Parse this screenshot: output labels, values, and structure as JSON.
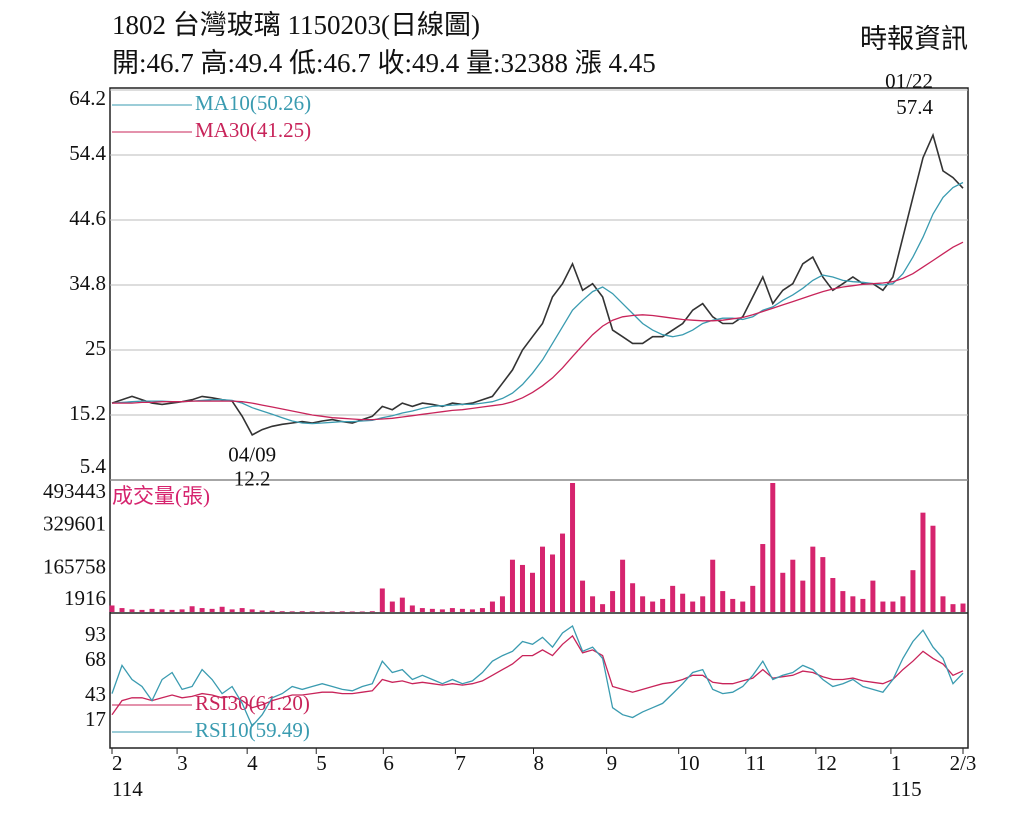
{
  "header": {
    "title": "1802  台灣玻璃 1150203(日線圖)",
    "source": "時報資訊",
    "summary": "開:46.7 高:49.4 低:46.7 收:49.4 量:32388 漲 4.45"
  },
  "chart_data": [
    {
      "type": "line",
      "panel": "price",
      "x": [
        0,
        1,
        2,
        3,
        4,
        5,
        6,
        7,
        8,
        9,
        10,
        11,
        12,
        13,
        14,
        15,
        16,
        17,
        18,
        19,
        20,
        21,
        22,
        23,
        24,
        25,
        26,
        27,
        28,
        29,
        30,
        31,
        32,
        33,
        34,
        35,
        36,
        37,
        38,
        39,
        40,
        41,
        42,
        43,
        44,
        45,
        46,
        47,
        48,
        49,
        50,
        51,
        52,
        53,
        54,
        55,
        56,
        57,
        58,
        59,
        60,
        61,
        62,
        63,
        64,
        65,
        66,
        67,
        68,
        69,
        70,
        71,
        72,
        73,
        74,
        75,
        76,
        77,
        78,
        79,
        80,
        81,
        82,
        83,
        84,
        85
      ],
      "xlim": [
        0,
        85
      ],
      "ylim": [
        5.4,
        64.2
      ],
      "yticks": [
        5.4,
        15.2,
        25.0,
        34.8,
        44.6,
        54.4,
        64.2
      ],
      "grid": true,
      "series": [
        {
          "name": null,
          "color": "#333333",
          "values": [
            17,
            17.5,
            18,
            17.5,
            17,
            16.8,
            17,
            17.2,
            17.5,
            18,
            17.8,
            17.5,
            17.3,
            15,
            12.2,
            13,
            13.5,
            13.8,
            14,
            14.2,
            14,
            14.3,
            14.5,
            14.2,
            14,
            14.5,
            15,
            16.5,
            16,
            17,
            16.5,
            17,
            16.8,
            16.5,
            17,
            16.8,
            17,
            17.5,
            18,
            20,
            22,
            25,
            27,
            29,
            33,
            35,
            38,
            34,
            35,
            33,
            28,
            27,
            26,
            26,
            27,
            27,
            28,
            29,
            31,
            32,
            30,
            29,
            29,
            30,
            33,
            36,
            32,
            34,
            35,
            38,
            39,
            36,
            34,
            35,
            36,
            35,
            35,
            34,
            36,
            42,
            48,
            54,
            57.4,
            52,
            51,
            49.4
          ]
        },
        {
          "name": "MA10(50.26)",
          "color": "#3a9bb0",
          "values": [
            17,
            17.1,
            17.2,
            17.3,
            17.3,
            17.3,
            17.2,
            17.2,
            17.3,
            17.4,
            17.5,
            17.5,
            17.4,
            17,
            16.3,
            15.8,
            15.3,
            14.8,
            14.3,
            14,
            13.9,
            14,
            14.1,
            14.2,
            14.2,
            14.3,
            14.4,
            14.8,
            15.1,
            15.5,
            15.8,
            16.2,
            16.5,
            16.6,
            16.7,
            16.8,
            16.8,
            17,
            17.2,
            17.7,
            18.5,
            19.8,
            21.5,
            23.5,
            26,
            28.5,
            31,
            32.5,
            33.8,
            34.5,
            33.5,
            32,
            30.5,
            29,
            28,
            27.3,
            27,
            27.3,
            28,
            29,
            29.5,
            29.8,
            29.8,
            29.6,
            30,
            31,
            31.5,
            32.5,
            33.3,
            34.3,
            35.5,
            36.3,
            36,
            35.5,
            35.3,
            35.2,
            35,
            34.8,
            35,
            36.5,
            39,
            42,
            45.5,
            48,
            49.5,
            50.26
          ]
        },
        {
          "name": "MA30(41.25)",
          "color": "#c8245a",
          "values": [
            17,
            17,
            17,
            17.1,
            17.1,
            17.2,
            17.2,
            17.2,
            17.3,
            17.3,
            17.3,
            17.3,
            17.3,
            17.2,
            17,
            16.7,
            16.4,
            16.1,
            15.8,
            15.5,
            15.2,
            15,
            14.8,
            14.7,
            14.6,
            14.5,
            14.5,
            14.6,
            14.7,
            14.9,
            15.1,
            15.3,
            15.5,
            15.7,
            15.9,
            16,
            16.2,
            16.4,
            16.6,
            16.8,
            17.2,
            17.8,
            18.6,
            19.6,
            20.8,
            22.3,
            24,
            25.7,
            27.3,
            28.6,
            29.5,
            30,
            30.2,
            30.3,
            30.2,
            30,
            29.8,
            29.6,
            29.5,
            29.4,
            29.4,
            29.5,
            29.7,
            29.9,
            30.3,
            30.8,
            31.3,
            31.8,
            32.3,
            32.8,
            33.3,
            33.8,
            34.2,
            34.5,
            34.7,
            34.9,
            35,
            35.1,
            35.3,
            35.8,
            36.5,
            37.5,
            38.5,
            39.5,
            40.5,
            41.25
          ]
        }
      ],
      "annotations": [
        {
          "date": "01/22",
          "x": 82,
          "value": 57.4
        },
        {
          "date": "04/09",
          "x": 14,
          "value": 12.2
        }
      ]
    },
    {
      "type": "bar",
      "panel": "volume",
      "title": "成交量(張)",
      "color": "#d6246e",
      "x": [
        0,
        1,
        2,
        3,
        4,
        5,
        6,
        7,
        8,
        9,
        10,
        11,
        12,
        13,
        14,
        15,
        16,
        17,
        18,
        19,
        20,
        21,
        22,
        23,
        24,
        25,
        26,
        27,
        28,
        29,
        30,
        31,
        32,
        33,
        34,
        35,
        36,
        37,
        38,
        39,
        40,
        41,
        42,
        43,
        44,
        45,
        46,
        47,
        48,
        49,
        50,
        51,
        52,
        53,
        54,
        55,
        56,
        57,
        58,
        59,
        60,
        61,
        62,
        63,
        64,
        65,
        66,
        67,
        68,
        69,
        70,
        71,
        72,
        73,
        74,
        75,
        76,
        77,
        78,
        79,
        80,
        81,
        82,
        83,
        84,
        85
      ],
      "xlim": [
        0,
        85
      ],
      "ylim": [
        0,
        493443
      ],
      "yticks": [
        1916,
        165758,
        329601,
        493443
      ],
      "values": [
        25000,
        15000,
        10000,
        8000,
        12000,
        10000,
        8000,
        10000,
        22000,
        15000,
        12000,
        20000,
        10000,
        15000,
        10000,
        6000,
        5000,
        3000,
        2500,
        3000,
        2500,
        2000,
        2000,
        2500,
        2000,
        2000,
        3000,
        90000,
        40000,
        55000,
        25000,
        15000,
        12000,
        10000,
        15000,
        12000,
        10000,
        15000,
        40000,
        60000,
        200000,
        180000,
        150000,
        250000,
        220000,
        300000,
        493443,
        120000,
        60000,
        30000,
        80000,
        200000,
        110000,
        60000,
        40000,
        50000,
        100000,
        70000,
        40000,
        60000,
        200000,
        80000,
        50000,
        40000,
        100000,
        260000,
        493443,
        150000,
        200000,
        120000,
        250000,
        210000,
        130000,
        80000,
        60000,
        50000,
        120000,
        40000,
        40000,
        60000,
        160000,
        380000,
        330000,
        60000,
        30000,
        32388
      ]
    },
    {
      "type": "line",
      "panel": "rsi",
      "x": [
        0,
        1,
        2,
        3,
        4,
        5,
        6,
        7,
        8,
        9,
        10,
        11,
        12,
        13,
        14,
        15,
        16,
        17,
        18,
        19,
        20,
        21,
        22,
        23,
        24,
        25,
        26,
        27,
        28,
        29,
        30,
        31,
        32,
        33,
        34,
        35,
        36,
        37,
        38,
        39,
        40,
        41,
        42,
        43,
        44,
        45,
        46,
        47,
        48,
        49,
        50,
        51,
        52,
        53,
        54,
        55,
        56,
        57,
        58,
        59,
        60,
        61,
        62,
        63,
        64,
        65,
        66,
        67,
        68,
        69,
        70,
        71,
        72,
        73,
        74,
        75,
        76,
        77,
        78,
        79,
        80,
        81,
        82,
        83,
        84,
        85
      ],
      "xlim": [
        0,
        85
      ],
      "ylim": [
        17,
        93
      ],
      "yticks": [
        17,
        43,
        68,
        93
      ],
      "xticks": [
        {
          "value": 0,
          "label": "2"
        },
        {
          "value": 6.5,
          "label": "3"
        },
        {
          "value": 13.5,
          "label": "4"
        },
        {
          "value": 20.4,
          "label": "5"
        },
        {
          "value": 27.1,
          "label": "6"
        },
        {
          "value": 34.3,
          "label": "7"
        },
        {
          "value": 42.1,
          "label": "8"
        },
        {
          "value": 49.4,
          "label": "9"
        },
        {
          "value": 56.6,
          "label": "10"
        },
        {
          "value": 63.3,
          "label": "11"
        },
        {
          "value": 70.3,
          "label": "12"
        },
        {
          "value": 77.8,
          "label": "1"
        },
        {
          "value": 85,
          "label": "2/3"
        }
      ],
      "year_labels": [
        {
          "value": 0,
          "label": "114"
        },
        {
          "value": 77.8,
          "label": "115"
        }
      ],
      "series": [
        {
          "name": "RSI30(61.20)",
          "color": "#c8245a",
          "values": [
            30,
            40,
            42,
            42,
            40,
            42,
            44,
            42,
            43,
            45,
            44,
            42,
            43,
            40,
            35,
            37,
            40,
            42,
            44,
            44,
            45,
            46,
            46,
            45,
            45,
            46,
            47,
            55,
            53,
            54,
            52,
            53,
            52,
            51,
            52,
            51,
            52,
            54,
            58,
            62,
            66,
            72,
            72,
            76,
            72,
            80,
            86,
            74,
            76,
            72,
            50,
            48,
            46,
            48,
            50,
            52,
            53,
            55,
            58,
            58,
            53,
            52,
            52,
            54,
            56,
            62,
            56,
            57,
            58,
            61,
            60,
            57,
            55,
            55,
            56,
            54,
            53,
            52,
            55,
            62,
            68,
            75,
            70,
            66,
            58,
            61.2
          ]
        },
        {
          "name": "RSI10(59.49)",
          "color": "#3a9bb0",
          "values": [
            45,
            65,
            55,
            50,
            40,
            55,
            60,
            48,
            50,
            62,
            55,
            45,
            50,
            38,
            22,
            30,
            42,
            45,
            50,
            48,
            50,
            52,
            50,
            48,
            47,
            50,
            52,
            68,
            60,
            62,
            55,
            58,
            55,
            52,
            55,
            52,
            54,
            60,
            68,
            72,
            75,
            82,
            80,
            85,
            78,
            88,
            93,
            75,
            78,
            70,
            35,
            30,
            28,
            32,
            35,
            38,
            45,
            52,
            60,
            62,
            48,
            45,
            46,
            50,
            58,
            68,
            55,
            58,
            60,
            65,
            62,
            55,
            50,
            52,
            55,
            50,
            48,
            46,
            55,
            70,
            82,
            90,
            78,
            70,
            52,
            59.49
          ]
        }
      ]
    }
  ]
}
